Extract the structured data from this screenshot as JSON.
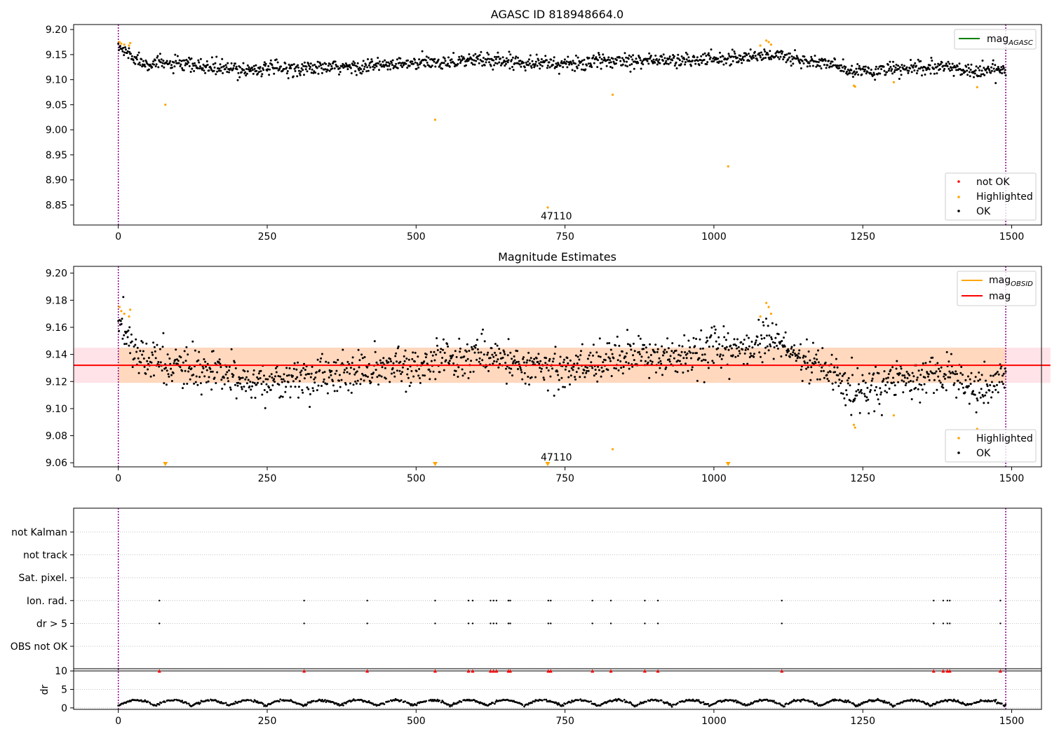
{
  "chart_data": [
    {
      "type": "scatter",
      "title": "AGASC ID 818948664.0",
      "xlabel": "",
      "ylabel": "",
      "xlim": [
        -75,
        1550
      ],
      "ylim": [
        8.81,
        9.21
      ],
      "x_ticks": [
        0,
        250,
        500,
        750,
        1000,
        1250,
        1500
      ],
      "x_tick_labels": [
        "0",
        "250",
        "500",
        "750",
        "1000",
        "1250",
        "1500"
      ],
      "y_ticks": [
        8.85,
        8.9,
        8.95,
        9.0,
        9.05,
        9.1,
        9.15,
        9.2
      ],
      "y_tick_labels": [
        "8.85",
        "8.90",
        "8.95",
        "9.00",
        "9.05",
        "9.10",
        "9.15",
        "9.20"
      ],
      "vlines_x": [
        0,
        1490
      ],
      "grid": false,
      "legend_upper": {
        "position": "top-right",
        "entries": [
          {
            "name": "mag",
            "subscript": "AGASC",
            "color": "#008000",
            "marker": "line"
          }
        ]
      },
      "legend_lower": {
        "position": "bottom-right",
        "entries": [
          {
            "name": "not OK",
            "color": "#ff0000",
            "marker": "dot"
          },
          {
            "name": "Highlighted",
            "color": "#ffa500",
            "marker": "dot"
          },
          {
            "name": "OK",
            "color": "#000000",
            "marker": "dot"
          }
        ]
      },
      "annotations": [
        {
          "text": "47110",
          "x": 721,
          "y": 8.82
        }
      ],
      "series": [
        {
          "name": "OK",
          "color": "#000000",
          "trend": [
            [
              0,
              9.165
            ],
            [
              20,
              9.15
            ],
            [
              40,
              9.135
            ],
            [
              100,
              9.13
            ],
            [
              200,
              9.12
            ],
            [
              250,
              9.122
            ],
            [
              350,
              9.123
            ],
            [
              500,
              9.132
            ],
            [
              600,
              9.14
            ],
            [
              700,
              9.135
            ],
            [
              750,
              9.13
            ],
            [
              850,
              9.14
            ],
            [
              950,
              9.138
            ],
            [
              1050,
              9.145
            ],
            [
              1100,
              9.15
            ],
            [
              1150,
              9.138
            ],
            [
              1200,
              9.13
            ],
            [
              1230,
              9.115
            ],
            [
              1300,
              9.12
            ],
            [
              1400,
              9.125
            ],
            [
              1440,
              9.115
            ],
            [
              1490,
              9.122
            ]
          ],
          "spread": 0.012
        },
        {
          "name": "Highlighted",
          "color": "#ffa500",
          "points": [
            [
              2,
              9.175
            ],
            [
              5,
              9.172
            ],
            [
              10,
              9.17
            ],
            [
              18,
              9.168
            ],
            [
              20,
              9.173
            ],
            [
              79,
              9.05
            ],
            [
              532,
              9.02
            ],
            [
              721,
              8.845
            ],
            [
              830,
              9.07
            ],
            [
              1024,
              8.927
            ],
            [
              1078,
              9.168
            ],
            [
              1088,
              9.178
            ],
            [
              1092,
              9.175
            ],
            [
              1096,
              9.17
            ],
            [
              1235,
              9.088
            ],
            [
              1237,
              9.086
            ],
            [
              1302,
              9.095
            ],
            [
              1442,
              9.085
            ]
          ]
        }
      ]
    },
    {
      "type": "scatter",
      "title": "Magnitude Estimates",
      "xlabel": "",
      "ylabel": "",
      "xlim": [
        -75,
        1550
      ],
      "ylim": [
        9.057,
        9.205
      ],
      "x_ticks": [
        0,
        250,
        500,
        750,
        1000,
        1250,
        1500
      ],
      "x_tick_labels": [
        "0",
        "250",
        "500",
        "750",
        "1000",
        "1250",
        "1500"
      ],
      "y_ticks": [
        9.06,
        9.08,
        9.1,
        9.12,
        9.14,
        9.16,
        9.18,
        9.2
      ],
      "y_tick_labels": [
        "9.06",
        "9.08",
        "9.10",
        "9.12",
        "9.14",
        "9.16",
        "9.18",
        "9.20"
      ],
      "vlines_x": [
        0,
        1490
      ],
      "grid": false,
      "mean_line": {
        "y": 9.132,
        "x_start": -75,
        "x_end": 1565,
        "color": "#ff0000"
      },
      "band_outer": {
        "y_low": 9.119,
        "y_high": 9.145,
        "x_start": -75,
        "x_end": 1565,
        "color": "#ffc0cb"
      },
      "band_inner": {
        "y_low": 9.119,
        "y_high": 9.145,
        "x_start": 0,
        "x_end": 1490,
        "color": "#ffa500"
      },
      "legend_upper": {
        "position": "top-right",
        "entries": [
          {
            "name": "mag",
            "subscript": "OBSID",
            "color": "#ffa500",
            "marker": "line"
          },
          {
            "name": "mag",
            "subscript": "",
            "color": "#ff0000",
            "marker": "line"
          }
        ]
      },
      "legend_lower": {
        "position": "bottom-right",
        "entries": [
          {
            "name": "Highlighted",
            "color": "#ffa500",
            "marker": "dot"
          },
          {
            "name": "OK",
            "color": "#000000",
            "marker": "dot"
          }
        ]
      },
      "annotations": [
        {
          "text": "47110",
          "x": 721,
          "y": 9.062
        }
      ],
      "series": [
        {
          "name": "OK",
          "color": "#000000",
          "trend": [
            [
              0,
              9.16
            ],
            [
              15,
              9.155
            ],
            [
              35,
              9.138
            ],
            [
              100,
              9.13
            ],
            [
              200,
              9.122
            ],
            [
              250,
              9.12
            ],
            [
              350,
              9.124
            ],
            [
              500,
              9.132
            ],
            [
              600,
              9.14
            ],
            [
              700,
              9.132
            ],
            [
              750,
              9.128
            ],
            [
              850,
              9.14
            ],
            [
              950,
              9.138
            ],
            [
              1050,
              9.145
            ],
            [
              1100,
              9.15
            ],
            [
              1150,
              9.135
            ],
            [
              1200,
              9.128
            ],
            [
              1230,
              9.112
            ],
            [
              1300,
              9.12
            ],
            [
              1400,
              9.125
            ],
            [
              1440,
              9.115
            ],
            [
              1490,
              9.122
            ]
          ],
          "spread": 0.012
        },
        {
          "name": "Highlighted",
          "color": "#ffa500",
          "points": [
            [
              2,
              9.175
            ],
            [
              5,
              9.172
            ],
            [
              10,
              9.17
            ],
            [
              18,
              9.168
            ],
            [
              20,
              9.173
            ],
            [
              830,
              9.07
            ],
            [
              1078,
              9.168
            ],
            [
              1088,
              9.178
            ],
            [
              1092,
              9.175
            ],
            [
              1096,
              9.17
            ],
            [
              1235,
              9.088
            ],
            [
              1237,
              9.086
            ],
            [
              1302,
              9.095
            ],
            [
              1442,
              9.085
            ]
          ]
        },
        {
          "name": "Highlighted (out of range)",
          "color": "#ffa500",
          "marker": "triangle-down",
          "x": [
            79,
            532,
            721,
            1024
          ]
        }
      ]
    },
    {
      "type": "scatter",
      "title": "",
      "xlabel": "",
      "ylabel": "",
      "xlim": [
        -75,
        1550
      ],
      "categories": [
        "OBS not OK",
        "dr > 5",
        "Ion. rad.",
        "Sat. pixel.",
        "not track",
        "not Kalman"
      ],
      "grid": true,
      "vlines_x": [
        0,
        1490
      ],
      "series": [
        {
          "name": "OBS not OK",
          "x": []
        },
        {
          "name": "dr > 5",
          "x": [
            69,
            312,
            418,
            532,
            588,
            595,
            625,
            630,
            635,
            655,
            658,
            722,
            726,
            796,
            827,
            884,
            906,
            1114,
            1369,
            1385,
            1392,
            1396,
            1481
          ]
        },
        {
          "name": "Ion. rad.",
          "x": [
            69,
            312,
            418,
            532,
            588,
            595,
            625,
            630,
            635,
            655,
            658,
            722,
            726,
            796,
            827,
            884,
            906,
            1114,
            1369,
            1385,
            1392,
            1396,
            1481
          ]
        },
        {
          "name": "Sat. pixel.",
          "x": []
        },
        {
          "name": "not track",
          "x": []
        },
        {
          "name": "not Kalman",
          "x": []
        }
      ]
    },
    {
      "type": "scatter",
      "title": "",
      "xlabel": "",
      "ylabel": "dr",
      "xlim": [
        -75,
        1550
      ],
      "ylim": [
        -0.4,
        10.6
      ],
      "x_ticks": [
        0,
        250,
        500,
        750,
        1000,
        1250,
        1500
      ],
      "x_tick_labels": [
        "0",
        "250",
        "500",
        "750",
        "1000",
        "1250",
        "1500"
      ],
      "y_ticks": [
        0,
        5,
        10
      ],
      "y_tick_labels": [
        "0",
        "5",
        "10"
      ],
      "grid": true,
      "hline_y": 10,
      "vlines_x": [
        0,
        1490
      ],
      "series": [
        {
          "name": "dr",
          "color": "#000000",
          "typical_range": [
            0.3,
            2.6
          ]
        },
        {
          "name": "dr > 5 (clipped)",
          "color": "#ff0000",
          "marker": "triangle-up",
          "y": 10,
          "x": [
            69,
            312,
            418,
            532,
            588,
            595,
            625,
            630,
            635,
            655,
            658,
            722,
            726,
            796,
            827,
            884,
            906,
            1114,
            1369,
            1385,
            1392,
            1396,
            1481
          ]
        }
      ]
    }
  ],
  "colors": {
    "vline": "#8b008b",
    "ok": "#000000",
    "highlighted": "#ffa500",
    "not_ok": "#ff0000",
    "mean_line": "#ff0000",
    "agasc_line": "#008000",
    "grid": "#b0b0b0"
  }
}
